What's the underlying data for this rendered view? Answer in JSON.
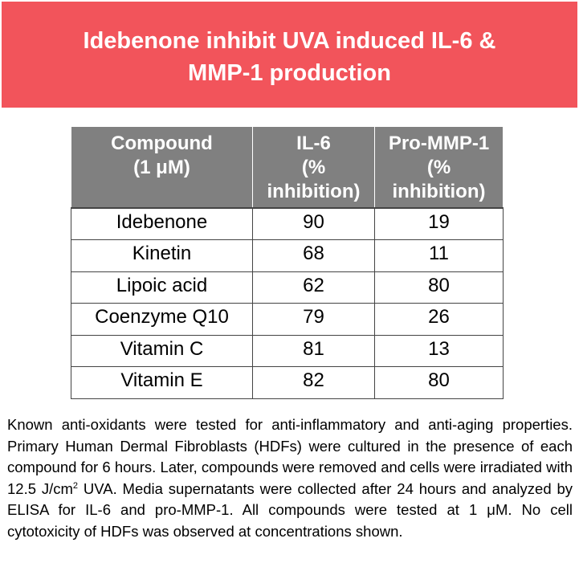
{
  "title": {
    "line1": "Idebenone inhibit UVA induced IL-6 &",
    "line2": "MMP-1 production"
  },
  "table": {
    "headers": [
      [
        "Compound",
        "(1 μM)"
      ],
      [
        "IL-6",
        "(%",
        "inhibition)"
      ],
      [
        "Pro-MMP-1",
        "(%",
        "inhibition)"
      ]
    ],
    "rows": [
      {
        "compound": "Idebenone",
        "il6": "90",
        "mmp1": "19"
      },
      {
        "compound": "Kinetin",
        "il6": "68",
        "mmp1": "11"
      },
      {
        "compound": "Lipoic acid",
        "il6": "62",
        "mmp1": "80"
      },
      {
        "compound": "Coenzyme Q10",
        "il6": "79",
        "mmp1": "26"
      },
      {
        "compound": "Vitamin C",
        "il6": "81",
        "mmp1": "13"
      },
      {
        "compound": "Vitamin E",
        "il6": "82",
        "mmp1": "80"
      }
    ]
  },
  "caption": {
    "part1": "Known anti-oxidants were tested for anti-inflammatory and anti-aging properties. Primary Human Dermal Fibroblasts (HDFs) were cultured in the presence of each compound for 6 hours. Later, compounds were removed and cells were irradiated with 12.5 J/cm",
    "superscript": "2",
    "part2": " UVA. Media supernatants were collected after 24 hours and analyzed by ELISA for IL-6 and pro-MMP-1. All compounds were tested at 1 μM. No cell cytotoxicity of HDFs was observed at concentrations shown."
  },
  "colors": {
    "banner": "#f2545b",
    "header_bg": "#808080"
  }
}
